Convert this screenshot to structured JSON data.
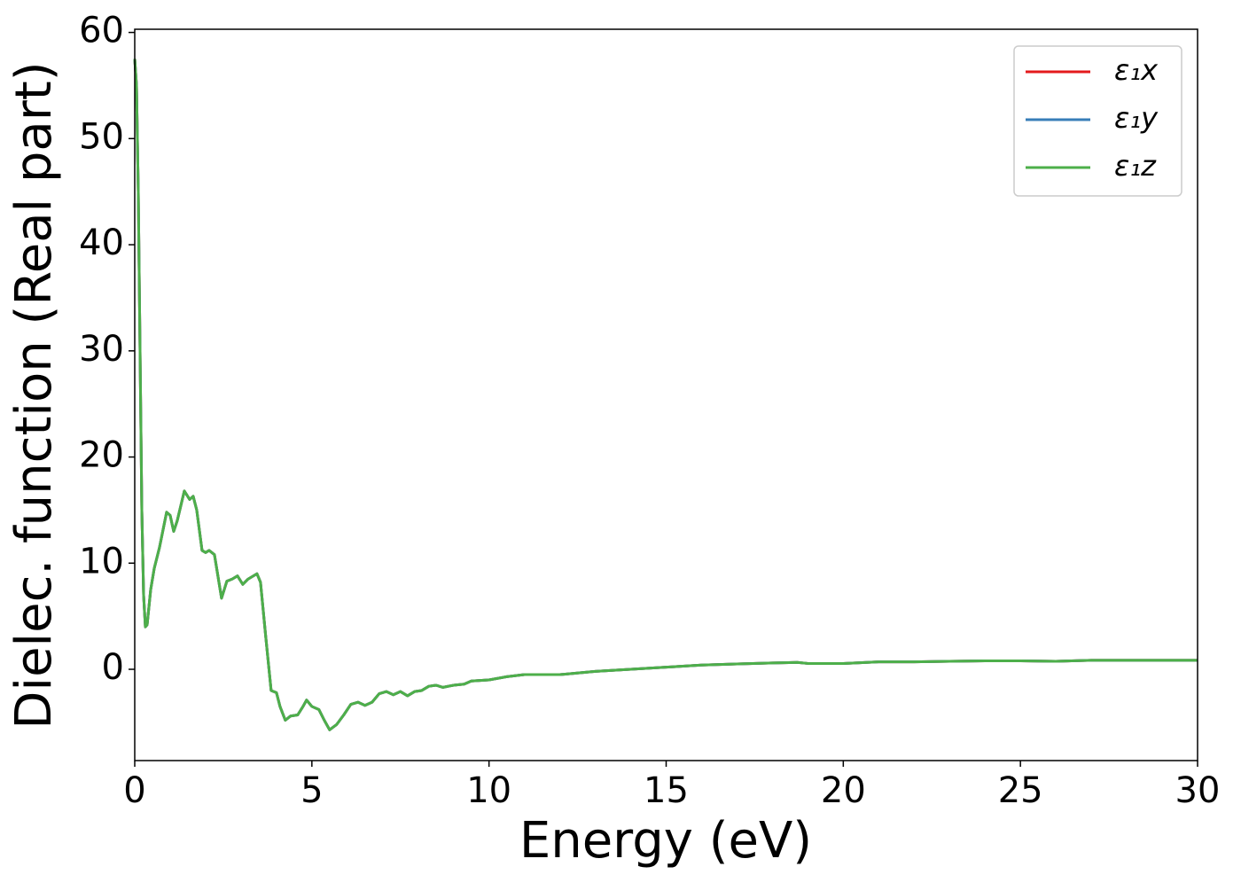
{
  "chart_data": {
    "type": "line",
    "xlabel": "Energy (eV)",
    "ylabel": "Dielec. function (Real part)",
    "x": [
      0,
      0.05,
      0.1,
      0.15,
      0.2,
      0.25,
      0.3,
      0.35,
      0.45,
      0.55,
      0.7,
      0.9,
      1.0,
      1.1,
      1.2,
      1.4,
      1.55,
      1.65,
      1.75,
      1.9,
      2.0,
      2.1,
      2.25,
      2.45,
      2.6,
      2.75,
      2.9,
      3.05,
      3.2,
      3.45,
      3.55,
      3.7,
      3.85,
      4.0,
      4.1,
      4.25,
      4.4,
      4.6,
      4.75,
      4.85,
      5.0,
      5.2,
      5.35,
      5.5,
      5.7,
      5.9,
      6.1,
      6.3,
      6.5,
      6.7,
      6.9,
      7.1,
      7.3,
      7.5,
      7.7,
      7.9,
      8.1,
      8.3,
      8.5,
      8.7,
      9.0,
      9.3,
      9.5,
      10,
      10.5,
      11,
      12,
      13,
      14,
      15,
      16,
      17,
      18,
      18.7,
      19,
      20,
      21,
      22,
      23,
      24,
      25,
      26,
      27,
      28,
      30
    ],
    "series": [
      {
        "name": "ε₁x",
        "color": "#e41a1c",
        "values": [
          57.5,
          55,
          45,
          30,
          15,
          7,
          4,
          4.2,
          7.5,
          9.5,
          11.5,
          14.8,
          14.5,
          13,
          14,
          16.8,
          16,
          16.3,
          15,
          11.2,
          11,
          11.2,
          10.8,
          6.7,
          8.3,
          8.5,
          8.8,
          8,
          8.5,
          9,
          8.2,
          3,
          -2,
          -2.2,
          -3.5,
          -4.8,
          -4.4,
          -4.3,
          -3.5,
          -2.9,
          -3.5,
          -3.8,
          -4.8,
          -5.7,
          -5.2,
          -4.3,
          -3.3,
          -3.1,
          -3.4,
          -3.1,
          -2.3,
          -2.1,
          -2.4,
          -2.1,
          -2.5,
          -2.1,
          -2.0,
          -1.6,
          -1.5,
          -1.7,
          -1.5,
          -1.4,
          -1.1,
          -1.0,
          -0.7,
          -0.5,
          -0.5,
          -0.2,
          0,
          0.2,
          0.4,
          0.5,
          0.6,
          0.65,
          0.55,
          0.55,
          0.7,
          0.7,
          0.75,
          0.8,
          0.8,
          0.75,
          0.85,
          0.85,
          0.85
        ]
      },
      {
        "name": "ε₁y",
        "color": "#377eb8",
        "values": [
          57.5,
          55,
          45,
          30,
          15,
          7,
          4,
          4.2,
          7.5,
          9.5,
          11.5,
          14.8,
          14.5,
          13,
          14,
          16.8,
          16,
          16.3,
          15,
          11.2,
          11,
          11.2,
          10.8,
          6.7,
          8.3,
          8.5,
          8.8,
          8,
          8.5,
          9,
          8.2,
          3,
          -2,
          -2.2,
          -3.5,
          -4.8,
          -4.4,
          -4.3,
          -3.5,
          -2.9,
          -3.5,
          -3.8,
          -4.8,
          -5.7,
          -5.2,
          -4.3,
          -3.3,
          -3.1,
          -3.4,
          -3.1,
          -2.3,
          -2.1,
          -2.4,
          -2.1,
          -2.5,
          -2.1,
          -2.0,
          -1.6,
          -1.5,
          -1.7,
          -1.5,
          -1.4,
          -1.1,
          -1.0,
          -0.7,
          -0.5,
          -0.5,
          -0.2,
          0,
          0.2,
          0.4,
          0.5,
          0.6,
          0.65,
          0.55,
          0.55,
          0.7,
          0.7,
          0.75,
          0.8,
          0.8,
          0.75,
          0.85,
          0.85,
          0.85
        ]
      },
      {
        "name": "ε₁z",
        "color": "#4daf4a",
        "values": [
          57.5,
          55,
          45,
          30,
          15,
          7,
          4,
          4.2,
          7.5,
          9.5,
          11.5,
          14.8,
          14.5,
          13,
          14,
          16.8,
          16,
          16.3,
          15,
          11.2,
          11,
          11.2,
          10.8,
          6.7,
          8.3,
          8.5,
          8.8,
          8,
          8.5,
          9,
          8.2,
          3,
          -2,
          -2.2,
          -3.5,
          -4.8,
          -4.4,
          -4.3,
          -3.5,
          -2.9,
          -3.5,
          -3.8,
          -4.8,
          -5.7,
          -5.2,
          -4.3,
          -3.3,
          -3.1,
          -3.4,
          -3.1,
          -2.3,
          -2.1,
          -2.4,
          -2.1,
          -2.5,
          -2.1,
          -2.0,
          -1.6,
          -1.5,
          -1.7,
          -1.5,
          -1.4,
          -1.1,
          -1.0,
          -0.7,
          -0.5,
          -0.5,
          -0.2,
          0,
          0.2,
          0.4,
          0.5,
          0.6,
          0.65,
          0.55,
          0.55,
          0.7,
          0.7,
          0.75,
          0.8,
          0.8,
          0.75,
          0.85,
          0.85,
          0.85
        ]
      }
    ],
    "xlim": [
      0,
      30
    ],
    "xticks": [
      0,
      5,
      10,
      15,
      20,
      25,
      30
    ],
    "ylim": [
      -8.6,
      60.3
    ],
    "yticks": [
      0,
      10,
      20,
      30,
      40,
      50,
      60
    ],
    "grid": false,
    "legend": "upper right"
  }
}
